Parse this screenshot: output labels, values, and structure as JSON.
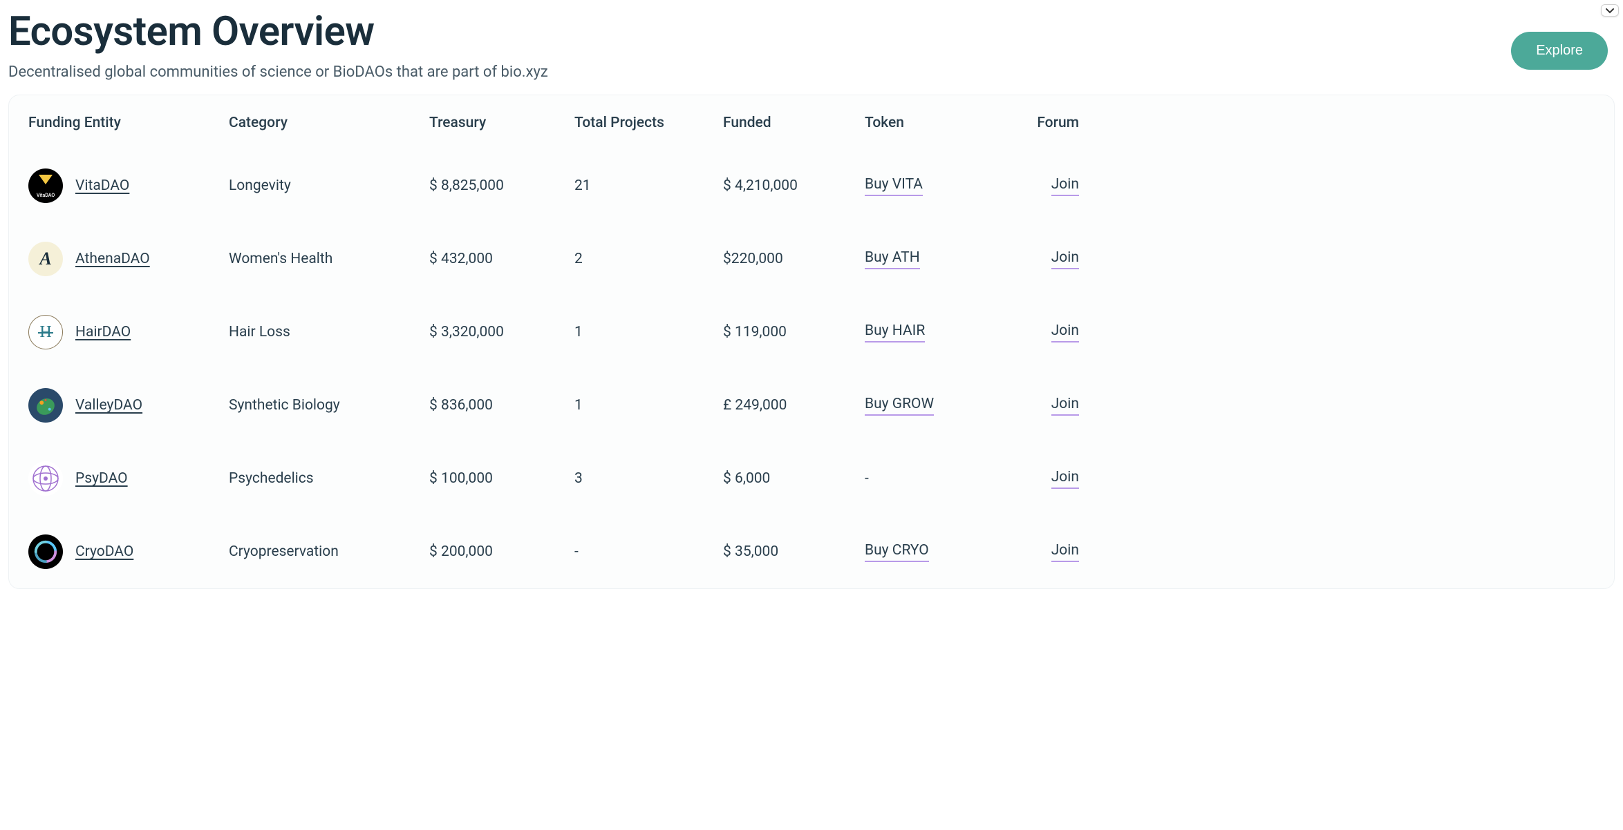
{
  "header": {
    "title": "Ecosystem Overview",
    "subtitle": "Decentralised global communities of science or BioDAOs that are part of bio.xyz",
    "explore_button": "Explore"
  },
  "table": {
    "columns": {
      "funding_entity": "Funding Entity",
      "category": "Category",
      "treasury": "Treasury",
      "total_projects": "Total Projects",
      "funded": "Funded",
      "token": "Token",
      "forum": "Forum"
    },
    "rows": [
      {
        "entity_name": "VitaDAO",
        "logo_class": "logo-vitadao",
        "category": "Longevity",
        "treasury": "$ 8,825,000",
        "total_projects": "21",
        "funded": "$ 4,210,000",
        "token": "Buy VITA",
        "forum": "Join"
      },
      {
        "entity_name": "AthenaDAO",
        "logo_class": "logo-athenadao",
        "category": "Women's Health",
        "treasury": "$ 432,000",
        "total_projects": "2",
        "funded": "$220,000",
        "token": "Buy ATH",
        "forum": "Join"
      },
      {
        "entity_name": "HairDAO",
        "logo_class": "logo-hairdao",
        "category": "Hair Loss",
        "treasury": "$ 3,320,000",
        "total_projects": "1",
        "funded": "$ 119,000",
        "token": "Buy HAIR",
        "forum": "Join"
      },
      {
        "entity_name": "ValleyDAO",
        "logo_class": "logo-valleydao",
        "category": "Synthetic Biology",
        "treasury": "$ 836,000",
        "total_projects": "1",
        "funded": "£ 249,000",
        "token": "Buy GROW",
        "forum": "Join"
      },
      {
        "entity_name": "PsyDAO",
        "logo_class": "logo-psydao",
        "category": "Psychedelics",
        "treasury": "$ 100,000",
        "total_projects": "3",
        "funded": "$ 6,000",
        "token": "-",
        "forum": "Join"
      },
      {
        "entity_name": "CryoDAO",
        "logo_class": "logo-cryodao",
        "category": "Cryopreservation",
        "treasury": "$ 200,000",
        "total_projects": "-",
        "funded": "$ 35,000",
        "token": "Buy CRYO",
        "forum": "Join"
      }
    ]
  },
  "colors": {
    "primary_text": "#1a2e3b",
    "secondary_text": "#4a5c68",
    "explore_button_bg": "#4ca999",
    "explore_button_text": "#ffffff",
    "link_underline": "#b89ae8",
    "table_border": "#eef2f4",
    "table_bg": "#fcfdfd"
  }
}
